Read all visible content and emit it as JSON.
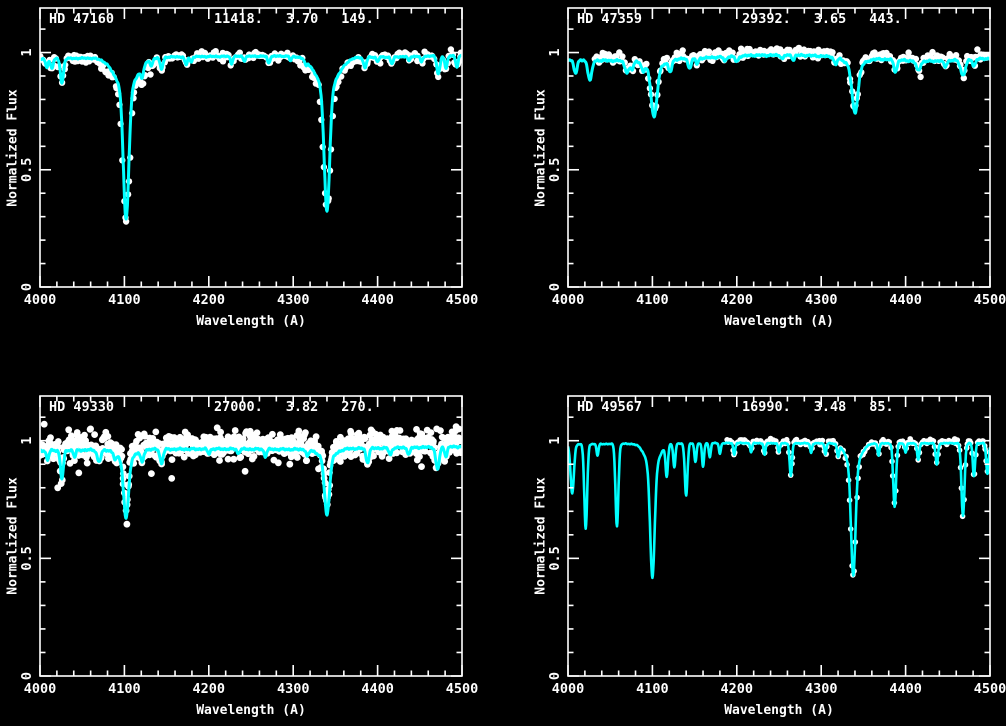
{
  "figure": {
    "background": "#000000",
    "frame_color": "#ffffff",
    "model_color": "#00ffff",
    "data_color": "#ffffff"
  },
  "chart_data": [
    {
      "id": "panel-top-left",
      "type": "line",
      "title": "HD 47160",
      "params": {
        "teff": "11418.",
        "logg": "3.70",
        "vsini": "149."
      },
      "xlabel": "Wavelength (A)",
      "ylabel": "Normalized Flux",
      "xlim": [
        4000,
        4500
      ],
      "ylim": [
        0,
        1.19
      ],
      "xticks": [
        4000,
        4100,
        4200,
        4300,
        4400,
        4500
      ],
      "xtick_labels": [
        "4000",
        "4100",
        "4200",
        "4300",
        "4400",
        "4500"
      ],
      "yticks": [
        0,
        0.5,
        1
      ],
      "ytick_labels": [
        "0",
        "0.5",
        "1"
      ],
      "x_minor_step": 20,
      "y_minor_step": 0.1,
      "grid": false,
      "series": [
        {
          "name": "observed spectrum",
          "style": "scatter",
          "color": "#ffffff"
        },
        {
          "name": "model fit",
          "style": "line",
          "color": "#00ffff"
        }
      ],
      "continuum_points": [
        [
          4000,
          0.972
        ],
        [
          4080,
          0.978
        ],
        [
          4200,
          0.983
        ],
        [
          4300,
          0.985
        ],
        [
          4400,
          0.98
        ],
        [
          4500,
          0.988
        ]
      ],
      "absorption_lines_format": [
        "center_angstrom",
        "depth_normflux",
        "sigma_angstrom"
      ],
      "absorption_lines": [
        [
          4008,
          0.035,
          1.5
        ],
        [
          4014,
          0.04,
          1.5
        ],
        [
          4026,
          0.105,
          1.8
        ],
        [
          4102,
          0.555,
          3.2
        ],
        [
          4102,
          0.135,
          13
        ],
        [
          4121,
          0.04,
          1.6
        ],
        [
          4132,
          0.03,
          1.3
        ],
        [
          4144,
          0.05,
          1.8
        ],
        [
          4173,
          0.035,
          1.5
        ],
        [
          4179,
          0.025,
          1.2
        ],
        [
          4227,
          0.03,
          1.3
        ],
        [
          4242,
          0.02,
          1.2
        ],
        [
          4271,
          0.03,
          1.4
        ],
        [
          4297,
          0.02,
          1.2
        ],
        [
          4315,
          0.02,
          1.2
        ],
        [
          4340,
          0.525,
          3.2
        ],
        [
          4340,
          0.135,
          13
        ],
        [
          4385,
          0.045,
          1.8
        ],
        [
          4400,
          0.02,
          1.2
        ],
        [
          4417,
          0.03,
          1.5
        ],
        [
          4437,
          0.02,
          1.2
        ],
        [
          4452,
          0.025,
          1.3
        ],
        [
          4472,
          0.075,
          1.9
        ],
        [
          4481,
          0.055,
          1.5
        ],
        [
          4494,
          0.05,
          1.5
        ]
      ],
      "texture_amp": 0.0035,
      "scatter": {
        "x_start": 4000,
        "x_end": 4500,
        "step": 1.6,
        "sigma": 0.009,
        "offset": 0.003,
        "dot_radius": 3.2,
        "width_scale": 1.3,
        "depth_scale": 1.0,
        "passes": 1,
        "seed": 101
      },
      "outliers": []
    },
    {
      "id": "panel-top-right",
      "type": "line",
      "title": "HD 47359",
      "params": {
        "teff": "29392.",
        "logg": "3.65",
        "vsini": "443."
      },
      "xlabel": "Wavelength (A)",
      "ylabel": "Normalized Flux",
      "xlim": [
        4000,
        4500
      ],
      "ylim": [
        0,
        1.19
      ],
      "xticks": [
        4000,
        4100,
        4200,
        4300,
        4400,
        4500
      ],
      "xtick_labels": [
        "4000",
        "4100",
        "4200",
        "4300",
        "4400",
        "4500"
      ],
      "yticks": [
        0,
        0.5,
        1
      ],
      "ytick_labels": [
        "0",
        "0.5",
        "1"
      ],
      "x_minor_step": 20,
      "y_minor_step": 0.1,
      "grid": false,
      "series": [
        {
          "name": "observed spectrum",
          "style": "scatter",
          "color": "#ffffff"
        },
        {
          "name": "model fit",
          "style": "line",
          "color": "#00ffff"
        }
      ],
      "continuum_points": [
        [
          4000,
          0.968
        ],
        [
          4060,
          0.965
        ],
        [
          4150,
          0.975
        ],
        [
          4220,
          0.988
        ],
        [
          4280,
          0.988
        ],
        [
          4340,
          0.978
        ],
        [
          4420,
          0.962
        ],
        [
          4470,
          0.968
        ],
        [
          4500,
          0.975
        ]
      ],
      "absorption_lines_format": [
        "center_angstrom",
        "depth_normflux",
        "sigma_angstrom"
      ],
      "absorption_lines": [
        [
          4009,
          0.055,
          1.9
        ],
        [
          4026,
          0.085,
          2.3
        ],
        [
          4070,
          0.05,
          2.6
        ],
        [
          4076,
          0.035,
          1.8
        ],
        [
          4089,
          0.035,
          1.8
        ],
        [
          4102,
          0.205,
          3.4
        ],
        [
          4102,
          0.04,
          10
        ],
        [
          4121,
          0.05,
          2.0
        ],
        [
          4144,
          0.04,
          1.9
        ],
        [
          4153,
          0.025,
          1.5
        ],
        [
          4186,
          0.02,
          1.5
        ],
        [
          4200,
          0.025,
          1.8
        ],
        [
          4254,
          0.015,
          1.4
        ],
        [
          4267,
          0.02,
          1.4
        ],
        [
          4317,
          0.03,
          1.8
        ],
        [
          4340,
          0.195,
          3.4
        ],
        [
          4340,
          0.04,
          10
        ],
        [
          4388,
          0.05,
          1.9
        ],
        [
          4415,
          0.04,
          2.4
        ],
        [
          4447,
          0.025,
          1.8
        ],
        [
          4468,
          0.065,
          2.8
        ],
        [
          4481,
          0.03,
          1.5
        ]
      ],
      "texture_amp": 0.005,
      "scatter": {
        "x_start": 4032,
        "x_end": 4500,
        "step": 1.5,
        "sigma": 0.011,
        "offset": 0.012,
        "dot_radius": 3.2,
        "width_scale": 1.15,
        "depth_scale": 0.95,
        "passes": 1,
        "seed": 202
      },
      "outliers": []
    },
    {
      "id": "panel-bottom-left",
      "type": "line",
      "title": "HD 49330",
      "params": {
        "teff": "27000.",
        "logg": "3.82",
        "vsini": "270."
      },
      "xlabel": "Wavelength (A)",
      "ylabel": "Normalized Flux",
      "xlim": [
        4000,
        4500
      ],
      "ylim": [
        0,
        1.19
      ],
      "xticks": [
        4000,
        4100,
        4200,
        4300,
        4400,
        4500
      ],
      "xtick_labels": [
        "4000",
        "4100",
        "4200",
        "4300",
        "4400",
        "4500"
      ],
      "yticks": [
        0,
        0.5,
        1
      ],
      "ytick_labels": [
        "0",
        "0.5",
        "1"
      ],
      "x_minor_step": 20,
      "y_minor_step": 0.1,
      "grid": false,
      "series": [
        {
          "name": "observed spectrum",
          "style": "scatter",
          "color": "#ffffff"
        },
        {
          "name": "model fit",
          "style": "line",
          "color": "#00ffff"
        }
      ],
      "continuum_points": [
        [
          4000,
          0.958
        ],
        [
          4100,
          0.962
        ],
        [
          4200,
          0.965
        ],
        [
          4300,
          0.963
        ],
        [
          4400,
          0.968
        ],
        [
          4500,
          0.975
        ]
      ],
      "absorption_lines_format": [
        "center_angstrom",
        "depth_normflux",
        "sigma_angstrom"
      ],
      "absorption_lines": [
        [
          4009,
          0.04,
          1.5
        ],
        [
          4026,
          0.12,
          1.8
        ],
        [
          4041,
          0.03,
          1.3
        ],
        [
          4070,
          0.05,
          2.2
        ],
        [
          4089,
          0.03,
          1.5
        ],
        [
          4102,
          0.245,
          2.9
        ],
        [
          4102,
          0.045,
          9
        ],
        [
          4121,
          0.05,
          1.8
        ],
        [
          4144,
          0.06,
          1.8
        ],
        [
          4200,
          0.02,
          1.5
        ],
        [
          4235,
          0.02,
          1.4
        ],
        [
          4267,
          0.03,
          1.5
        ],
        [
          4317,
          0.03,
          1.6
        ],
        [
          4340,
          0.235,
          2.9
        ],
        [
          4340,
          0.045,
          9
        ],
        [
          4388,
          0.06,
          1.8
        ],
        [
          4415,
          0.03,
          1.6
        ],
        [
          4437,
          0.03,
          1.5
        ],
        [
          4471,
          0.095,
          2.1
        ],
        [
          4481,
          0.04,
          1.5
        ]
      ],
      "texture_amp": 0.005,
      "scatter": {
        "x_start": 4000,
        "x_end": 4500,
        "step": 1.1,
        "sigma": 0.027,
        "offset": 0.015,
        "dot_radius": 3.4,
        "width_scale": 0.9,
        "depth_scale": 0.88,
        "passes": 2,
        "seed": 303
      },
      "outliers": [
        [
          4103,
          0.645
        ],
        [
          4021,
          0.8
        ],
        [
          4060,
          1.05
        ],
        [
          4156,
          0.84
        ],
        [
          4210,
          1.055
        ],
        [
          4243,
          0.87
        ],
        [
          4249,
          1.04
        ],
        [
          4005,
          1.07
        ],
        [
          4330,
          0.88
        ],
        [
          4368,
          1.04
        ],
        [
          4452,
          0.89
        ],
        [
          4470,
          1.05
        ],
        [
          4493,
          1.06
        ],
        [
          4132,
          0.86
        ],
        [
          4296,
          0.9
        ]
      ]
    },
    {
      "id": "panel-bottom-right",
      "type": "line",
      "title": "HD 49567",
      "params": {
        "teff": "16990.",
        "logg": "3.48",
        "vsini": "85."
      },
      "xlabel": "Wavelength (A)",
      "ylabel": "Normalized Flux",
      "xlim": [
        4000,
        4500
      ],
      "ylim": [
        0,
        1.19
      ],
      "xticks": [
        4000,
        4100,
        4200,
        4300,
        4400,
        4500
      ],
      "xtick_labels": [
        "4000",
        "4100",
        "4200",
        "4300",
        "4400",
        "4500"
      ],
      "yticks": [
        0,
        0.5,
        1
      ],
      "ytick_labels": [
        "0",
        "0.5",
        "1"
      ],
      "x_minor_step": 20,
      "y_minor_step": 0.1,
      "grid": false,
      "series": [
        {
          "name": "observed spectrum",
          "style": "scatter",
          "color": "#ffffff"
        },
        {
          "name": "model fit",
          "style": "line",
          "color": "#00ffff"
        }
      ],
      "continuum_points": [
        [
          4000,
          0.985
        ],
        [
          4200,
          0.99
        ],
        [
          4350,
          0.988
        ],
        [
          4500,
          0.99
        ]
      ],
      "absorption_lines_format": [
        "center_angstrom",
        "depth_normflux",
        "sigma_angstrom"
      ],
      "absorption_lines": [
        [
          4005,
          0.21,
          2.0
        ],
        [
          4021,
          0.36,
          1.7
        ],
        [
          4035,
          0.05,
          1.1
        ],
        [
          4058,
          0.35,
          1.7
        ],
        [
          4100,
          0.47,
          2.6
        ],
        [
          4100,
          0.1,
          8
        ],
        [
          4117,
          0.13,
          1.4
        ],
        [
          4126,
          0.1,
          1.3
        ],
        [
          4140,
          0.22,
          1.6
        ],
        [
          4151,
          0.08,
          1.2
        ],
        [
          4160,
          0.1,
          1.2
        ],
        [
          4168,
          0.06,
          1.1
        ],
        [
          4180,
          0.045,
          1.1
        ],
        [
          4197,
          0.05,
          1.1
        ],
        [
          4217,
          0.04,
          1.1
        ],
        [
          4233,
          0.05,
          1.1
        ],
        [
          4250,
          0.04,
          1.1
        ],
        [
          4264,
          0.14,
          1.4
        ],
        [
          4288,
          0.04,
          1.1
        ],
        [
          4305,
          0.045,
          1.1
        ],
        [
          4320,
          0.05,
          1.1
        ],
        [
          4338,
          0.46,
          2.6
        ],
        [
          4338,
          0.1,
          8
        ],
        [
          4368,
          0.05,
          1.1
        ],
        [
          4387,
          0.27,
          1.7
        ],
        [
          4400,
          0.04,
          1.1
        ],
        [
          4415,
          0.07,
          1.3
        ],
        [
          4437,
          0.09,
          1.4
        ],
        [
          4468,
          0.31,
          1.8
        ],
        [
          4481,
          0.14,
          1.4
        ],
        [
          4497,
          0.13,
          1.5
        ]
      ],
      "texture_amp": 0.0022,
      "scatter": {
        "x_start": 4188,
        "x_end": 4500,
        "step": 1.4,
        "sigma": 0.005,
        "offset": 0.007,
        "dot_radius": 2.8,
        "width_scale": 1.12,
        "depth_scale": 1.02,
        "passes": 1,
        "seed": 404
      },
      "outliers": []
    }
  ]
}
